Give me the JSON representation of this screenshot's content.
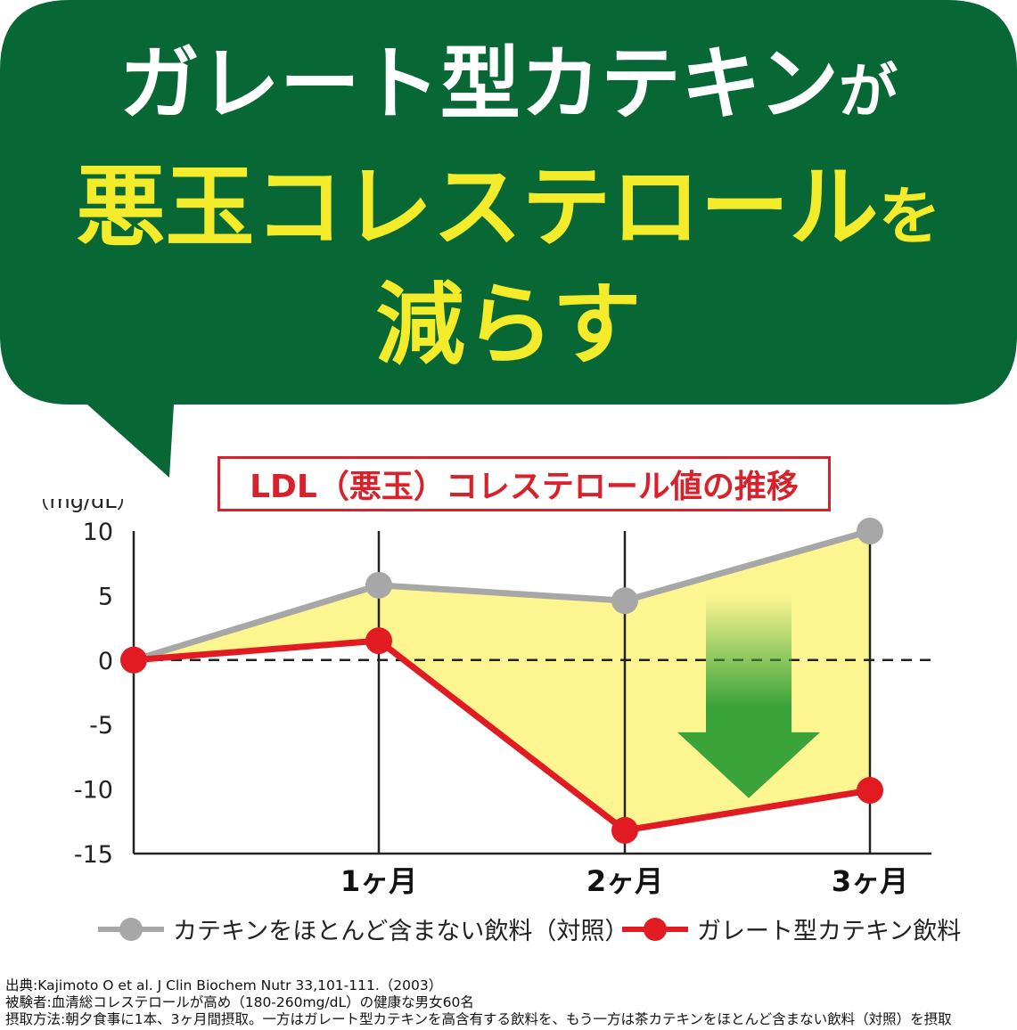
{
  "colors": {
    "bubble": "#076735",
    "headline_white": "#ffffff",
    "headline_yellow": "#f4ec2a",
    "title_red": "#d7222b",
    "control": "#a7a7a7",
    "catechin": "#e21b22",
    "fill": "#fdf690",
    "arrow": "#3aa33a"
  },
  "headline": {
    "line1_main": "ガレート型カテキン",
    "line1_particle": "が",
    "line2_main": "悪玉コレステロール",
    "line2_particle": "を",
    "line3": "減らす"
  },
  "chart_data": {
    "type": "line",
    "title": "LDL（悪玉）コレステロール値の推移",
    "ylabel": "（mg/dL）",
    "ylim": [
      -15,
      10
    ],
    "yticks": [
      "10",
      "5",
      "0",
      "-5",
      "-10",
      "-15"
    ],
    "x_labels": [
      "",
      "1ヶ月",
      "2ヶ月",
      "3ヶ月"
    ],
    "reference_line": 0,
    "series": [
      {
        "name": "カテキンをほとんど含まない飲料（対照）",
        "color": "#a7a7a7",
        "values": [
          0,
          5.8,
          4.6,
          10
        ]
      },
      {
        "name": "ガレート型カテキン飲料",
        "color": "#e21b22",
        "values": [
          0,
          1.5,
          -13.2,
          -10.1
        ]
      }
    ],
    "annotation": "down-arrow"
  },
  "legend": [
    {
      "label": "カテキンをほとんど含まない飲料（対照）",
      "color": "#a7a7a7",
      "icon": "gray-line-dot"
    },
    {
      "label": "ガレート型カテキン飲料",
      "color": "#e21b22",
      "icon": "red-line-dot"
    }
  ],
  "source_lines": [
    "出典:Kajimoto O et al. J Clin Biochem Nutr 33,101-111.（2003）",
    "被験者:血清総コレステロールが高め（180-260mg/dL）の健康な男女60名",
    "摂取方法:朝夕食事に1本、3ヶ月間摂取。一方はガレート型カテキンを高含有する飲料を、もう一方は茶カテキンをほとんど含まない飲料（対照）を摂取"
  ]
}
